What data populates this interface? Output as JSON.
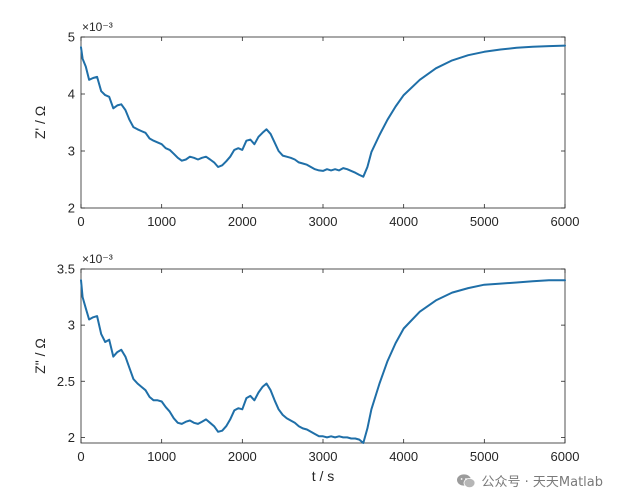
{
  "chart_data": [
    {
      "type": "line",
      "ylabel": "Z' / Ω",
      "exponent_label": "×10⁻³",
      "xlim": [
        0,
        6000
      ],
      "ylim": [
        2,
        5
      ],
      "x_ticks": [
        "0",
        "1000",
        "2000",
        "3000",
        "4000",
        "5000",
        "6000"
      ],
      "y_ticks": [
        "2",
        "3",
        "4",
        "5"
      ],
      "line_color": "#1f6fa8",
      "series": [
        {
          "x": [
            0,
            20,
            60,
            100,
            150,
            200,
            250,
            300,
            350,
            400,
            450,
            500,
            550,
            600,
            650,
            700,
            750,
            800,
            850,
            900,
            950,
            1000,
            1050,
            1100,
            1150,
            1200,
            1250,
            1300,
            1350,
            1400,
            1450,
            1500,
            1550,
            1600,
            1650,
            1700,
            1750,
            1800,
            1850,
            1900,
            1950,
            2000,
            2050,
            2100,
            2150,
            2200,
            2250,
            2300,
            2350,
            2400,
            2450,
            2500,
            2550,
            2600,
            2650,
            2700,
            2750,
            2800,
            2850,
            2900,
            2950,
            3000,
            3050,
            3100,
            3150,
            3200,
            3250,
            3300,
            3350,
            3400,
            3450,
            3500,
            3550,
            3600,
            3700,
            3800,
            3900,
            4000,
            4200,
            4400,
            4600,
            4800,
            5000,
            5200,
            5400,
            5600,
            5800,
            6000
          ],
          "values": [
            4.82,
            4.62,
            4.48,
            4.25,
            4.28,
            4.3,
            4.05,
            3.98,
            3.95,
            3.75,
            3.8,
            3.82,
            3.72,
            3.55,
            3.42,
            3.38,
            3.35,
            3.32,
            3.22,
            3.18,
            3.15,
            3.12,
            3.05,
            3.02,
            2.95,
            2.88,
            2.83,
            2.85,
            2.9,
            2.88,
            2.85,
            2.88,
            2.9,
            2.85,
            2.8,
            2.72,
            2.75,
            2.82,
            2.9,
            3.02,
            3.05,
            3.02,
            3.18,
            3.2,
            3.12,
            3.25,
            3.32,
            3.38,
            3.3,
            3.15,
            3.0,
            2.92,
            2.9,
            2.88,
            2.85,
            2.8,
            2.78,
            2.76,
            2.72,
            2.68,
            2.66,
            2.65,
            2.68,
            2.66,
            2.68,
            2.66,
            2.7,
            2.68,
            2.65,
            2.62,
            2.58,
            2.55,
            2.72,
            2.98,
            3.28,
            3.55,
            3.78,
            3.98,
            4.25,
            4.45,
            4.59,
            4.68,
            4.74,
            4.78,
            4.81,
            4.83,
            4.84,
            4.85
          ]
        }
      ]
    },
    {
      "type": "line",
      "ylabel": "Z\" / Ω",
      "xlabel": "t / s",
      "exponent_label": "×10⁻³",
      "xlim": [
        0,
        6000
      ],
      "ylim": [
        1.95,
        3.5
      ],
      "x_ticks": [
        "0",
        "1000",
        "2000",
        "3000",
        "4000",
        "5000",
        "6000"
      ],
      "y_ticks": [
        "2",
        "2.5",
        "3",
        "3.5"
      ],
      "line_color": "#1f6fa8",
      "series": [
        {
          "x": [
            0,
            20,
            60,
            100,
            150,
            200,
            250,
            300,
            350,
            400,
            450,
            500,
            550,
            600,
            650,
            700,
            750,
            800,
            850,
            900,
            950,
            1000,
            1050,
            1100,
            1150,
            1200,
            1250,
            1300,
            1350,
            1400,
            1450,
            1500,
            1550,
            1600,
            1650,
            1700,
            1750,
            1800,
            1850,
            1900,
            1950,
            2000,
            2050,
            2100,
            2150,
            2200,
            2250,
            2300,
            2350,
            2400,
            2450,
            2500,
            2550,
            2600,
            2650,
            2700,
            2750,
            2800,
            2850,
            2900,
            2950,
            3000,
            3050,
            3100,
            3150,
            3200,
            3250,
            3300,
            3350,
            3400,
            3450,
            3500,
            3550,
            3600,
            3700,
            3800,
            3900,
            4000,
            4200,
            4400,
            4600,
            4800,
            5000,
            5200,
            5400,
            5600,
            5800,
            6000
          ],
          "values": [
            3.4,
            3.25,
            3.15,
            3.05,
            3.07,
            3.08,
            2.92,
            2.85,
            2.87,
            2.72,
            2.76,
            2.78,
            2.72,
            2.62,
            2.52,
            2.48,
            2.45,
            2.42,
            2.36,
            2.33,
            2.33,
            2.32,
            2.27,
            2.23,
            2.17,
            2.13,
            2.12,
            2.14,
            2.15,
            2.13,
            2.12,
            2.14,
            2.16,
            2.13,
            2.1,
            2.05,
            2.06,
            2.1,
            2.16,
            2.24,
            2.26,
            2.25,
            2.35,
            2.37,
            2.33,
            2.4,
            2.45,
            2.48,
            2.42,
            2.33,
            2.25,
            2.2,
            2.17,
            2.15,
            2.13,
            2.1,
            2.08,
            2.07,
            2.05,
            2.03,
            2.01,
            2.01,
            2.0,
            2.01,
            2.0,
            2.01,
            2.0,
            2.0,
            1.99,
            1.99,
            1.98,
            1.95,
            2.08,
            2.25,
            2.48,
            2.68,
            2.84,
            2.97,
            3.12,
            3.22,
            3.29,
            3.33,
            3.36,
            3.37,
            3.38,
            3.39,
            3.4,
            3.4
          ]
        }
      ]
    }
  ],
  "watermark": {
    "icon": "wechat-icon",
    "text": "公众号 · 天天Matlab"
  }
}
